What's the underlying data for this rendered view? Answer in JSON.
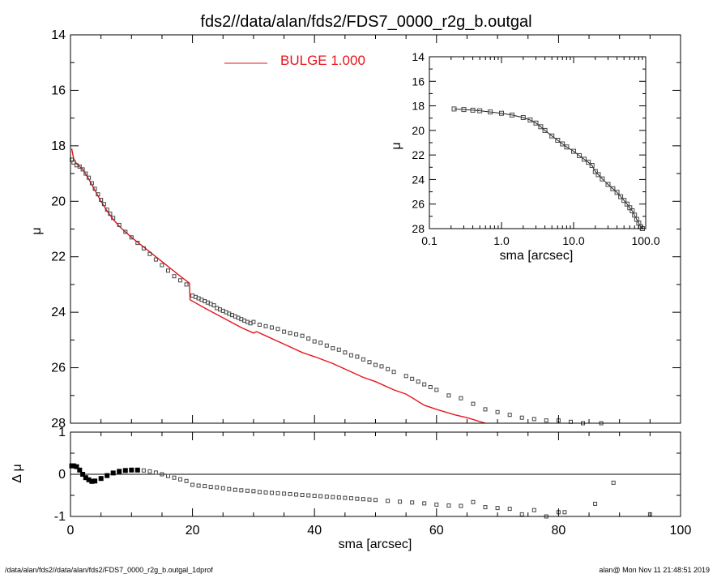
{
  "title": "fds2//data/alan/fds2/FDS7_0000_r2g_b.outgal",
  "footer_left": "/data/alan/fds2//data/alan/fds2/FDS7_0000_r2g_b.outgal_1dprof",
  "footer_right": "alan@  Mon Nov 11 21:48:51 2019",
  "legend": {
    "label": "BULGE  1.000",
    "color": "#e8141c"
  },
  "colors": {
    "model": "#e8141c",
    "data": "#444444",
    "axes": "#000000"
  },
  "chart_data": [
    {
      "id": "main",
      "type": "line",
      "xlabel": "",
      "ylabel": "μ",
      "xlim": [
        0,
        100
      ],
      "ylim": [
        28,
        14
      ],
      "y_reversed": true,
      "xticks": [
        "0",
        "20",
        "40",
        "60",
        "80",
        "100"
      ],
      "yticks": [
        "14",
        "16",
        "18",
        "20",
        "22",
        "24",
        "26",
        "28"
      ],
      "legend_position": "top-center",
      "series": [
        {
          "name": "BULGE  1.000",
          "style": "line",
          "x": [
            0.2,
            0.5,
            1,
            1.5,
            2,
            3,
            4,
            5,
            6,
            7,
            8,
            10,
            12,
            14,
            16,
            18,
            19.5,
            19.6,
            22,
            25,
            28,
            30,
            30.5,
            31,
            32,
            35,
            38,
            40,
            43,
            45,
            48,
            50,
            53,
            55,
            58,
            60,
            63,
            65,
            68
          ],
          "y": [
            18.1,
            18.45,
            18.65,
            18.75,
            18.85,
            19.2,
            19.6,
            20.0,
            20.35,
            20.65,
            20.9,
            21.3,
            21.65,
            22.0,
            22.35,
            22.7,
            22.95,
            23.55,
            23.85,
            24.2,
            24.55,
            24.75,
            24.7,
            24.75,
            24.85,
            25.15,
            25.45,
            25.6,
            25.85,
            26.05,
            26.35,
            26.5,
            26.8,
            26.95,
            27.35,
            27.5,
            27.7,
            27.8,
            28.0
          ]
        },
        {
          "name": "",
          "style": "markers",
          "x": [
            0.2,
            0.5,
            1,
            1.5,
            2,
            2.5,
            3,
            3.5,
            4,
            4.5,
            5,
            5.5,
            6,
            6.5,
            7,
            8,
            9,
            10,
            11,
            12,
            13,
            14,
            15,
            16,
            17,
            18,
            19,
            20,
            20.5,
            21,
            21.5,
            22,
            22.5,
            23,
            23.5,
            24,
            24.5,
            25,
            25.5,
            26,
            26.5,
            27,
            27.5,
            28,
            28.5,
            29,
            29.5,
            30,
            31,
            32,
            33,
            34,
            35,
            36,
            37,
            38,
            39,
            40,
            41,
            42,
            43,
            44,
            45,
            46,
            47,
            48,
            49,
            50,
            51,
            52,
            53,
            55,
            56,
            57,
            58,
            59,
            60,
            62,
            64,
            66,
            68,
            70,
            72,
            74,
            76,
            78,
            80,
            82,
            84,
            87
          ],
          "y": [
            18.5,
            18.6,
            18.7,
            18.75,
            18.85,
            19.0,
            19.15,
            19.35,
            19.55,
            19.75,
            19.95,
            20.1,
            20.3,
            20.45,
            20.6,
            20.85,
            21.1,
            21.3,
            21.5,
            21.7,
            21.9,
            22.1,
            22.3,
            22.5,
            22.7,
            22.85,
            23.0,
            23.4,
            23.45,
            23.5,
            23.55,
            23.6,
            23.65,
            23.7,
            23.75,
            23.85,
            23.9,
            23.95,
            24.0,
            24.05,
            24.1,
            24.15,
            24.2,
            24.25,
            24.3,
            24.35,
            24.4,
            24.35,
            24.45,
            24.5,
            24.55,
            24.6,
            24.7,
            24.75,
            24.8,
            24.85,
            24.95,
            25.05,
            25.1,
            25.2,
            25.3,
            25.35,
            25.45,
            25.55,
            25.6,
            25.7,
            25.8,
            25.9,
            25.95,
            26.05,
            26.15,
            26.3,
            26.4,
            26.5,
            26.6,
            26.7,
            26.8,
            27.0,
            27.1,
            27.3,
            27.5,
            27.6,
            27.7,
            27.8,
            27.85,
            27.9,
            27.9,
            27.95,
            28.0,
            28.0
          ]
        }
      ]
    },
    {
      "id": "inset",
      "type": "scatter",
      "xlabel": "sma [arcsec]",
      "ylabel": "μ",
      "xscale": "log",
      "xlim": [
        0.1,
        100
      ],
      "ylim": [
        28,
        14
      ],
      "y_reversed": true,
      "xticks": [
        "0.1",
        "1.0",
        "10.0",
        "100.0"
      ],
      "yticks": [
        "14",
        "16",
        "18",
        "20",
        "22",
        "24",
        "26",
        "28"
      ],
      "series": [
        {
          "name": "",
          "x": [
            0.22,
            0.3,
            0.4,
            0.5,
            0.7,
            1.0,
            1.4,
            2.0,
            2.5,
            3.0,
            3.5,
            4.0,
            5.0,
            6.0,
            7.0,
            8.0,
            10,
            12,
            14,
            16,
            18,
            20,
            22,
            25,
            30,
            35,
            40,
            45,
            50,
            55,
            60,
            65,
            70,
            75,
            80,
            85,
            90
          ],
          "y": [
            18.25,
            18.3,
            18.35,
            18.4,
            18.5,
            18.6,
            18.75,
            18.95,
            19.15,
            19.4,
            19.7,
            20.0,
            20.45,
            20.8,
            21.1,
            21.35,
            21.7,
            22.05,
            22.35,
            22.6,
            22.85,
            23.35,
            23.6,
            23.95,
            24.4,
            24.75,
            25.05,
            25.4,
            25.7,
            26.0,
            26.3,
            26.55,
            26.9,
            27.25,
            27.55,
            27.85,
            28.0
          ]
        }
      ]
    },
    {
      "id": "residual",
      "type": "scatter",
      "xlabel": "sma [arcsec]",
      "ylabel": "Δ μ",
      "xlim": [
        0,
        100
      ],
      "ylim": [
        -1,
        1
      ],
      "xticks": [
        "0",
        "20",
        "40",
        "60",
        "80",
        "100"
      ],
      "yticks": [
        "1",
        "0",
        "-1"
      ],
      "series": [
        {
          "name": "",
          "x": [
            0.2,
            0.5,
            1,
            1.5,
            2,
            2.5,
            3,
            3.5,
            4,
            5,
            6,
            7,
            8,
            9,
            10,
            11,
            12,
            13,
            14,
            15,
            16,
            17,
            18,
            19,
            20,
            21,
            22,
            23,
            24,
            25,
            26,
            27,
            28,
            29,
            30,
            31,
            32,
            33,
            34,
            35,
            36,
            37,
            38,
            39,
            40,
            41,
            42,
            43,
            44,
            45,
            46,
            47,
            48,
            49,
            50,
            52,
            54,
            56,
            58,
            60,
            62,
            64,
            66,
            68,
            70,
            72,
            74,
            76,
            78,
            80,
            81,
            84,
            86,
            89,
            95
          ],
          "y": [
            0.2,
            0.2,
            0.18,
            0.1,
            0.0,
            -0.08,
            -0.13,
            -0.17,
            -0.16,
            -0.1,
            -0.03,
            0.03,
            0.07,
            0.09,
            0.1,
            0.1,
            0.09,
            0.07,
            0.04,
            0.0,
            -0.04,
            -0.08,
            -0.12,
            -0.16,
            -0.25,
            -0.27,
            -0.28,
            -0.3,
            -0.31,
            -0.33,
            -0.35,
            -0.37,
            -0.38,
            -0.39,
            -0.4,
            -0.42,
            -0.43,
            -0.44,
            -0.45,
            -0.46,
            -0.47,
            -0.48,
            -0.49,
            -0.5,
            -0.51,
            -0.52,
            -0.53,
            -0.54,
            -0.55,
            -0.56,
            -0.57,
            -0.58,
            -0.59,
            -0.6,
            -0.61,
            -0.63,
            -0.65,
            -0.67,
            -0.69,
            -0.72,
            -0.74,
            -0.75,
            -0.66,
            -0.78,
            -0.8,
            -0.82,
            -0.95,
            -0.85,
            -1.0,
            -0.9,
            -0.9,
            -1.05,
            -0.7,
            -0.2,
            -0.95
          ]
        }
      ]
    }
  ]
}
